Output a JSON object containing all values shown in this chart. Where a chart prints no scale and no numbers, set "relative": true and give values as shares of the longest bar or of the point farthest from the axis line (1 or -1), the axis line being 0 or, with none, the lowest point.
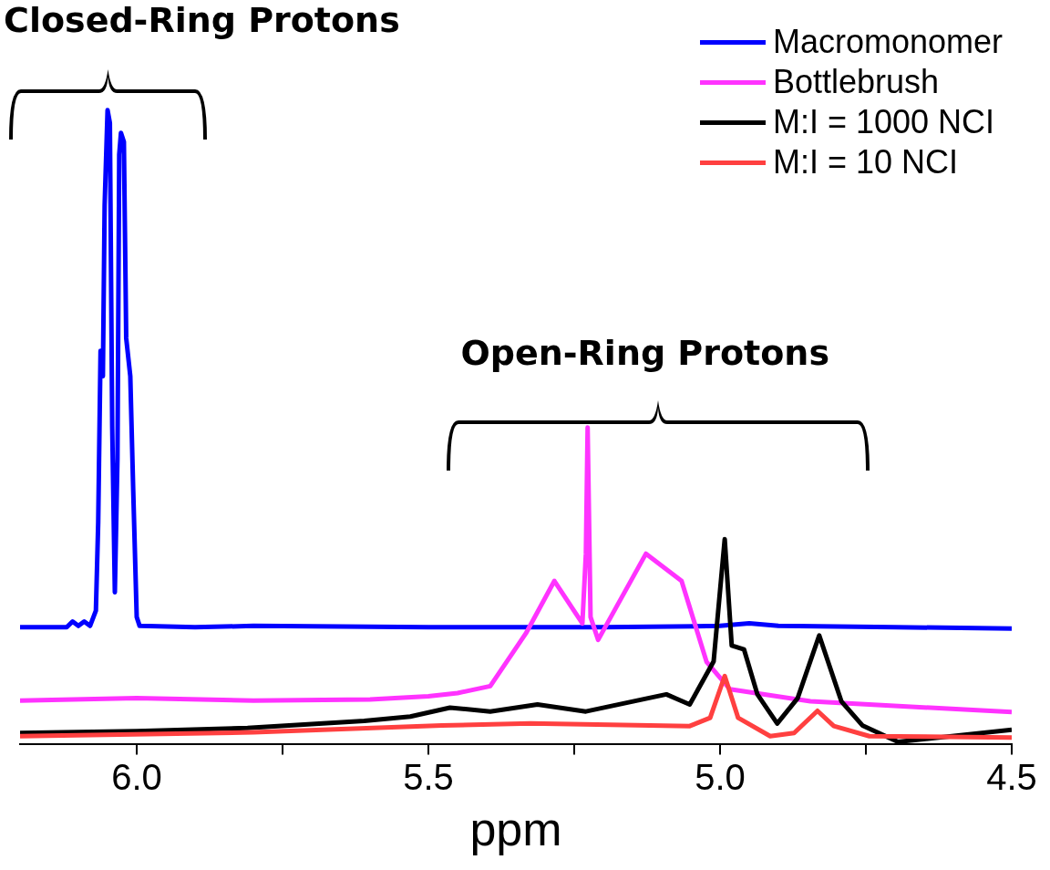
{
  "chart_data": {
    "type": "line",
    "relative": true,
    "xlabel": "ppm",
    "xlim": [
      6.2,
      4.5
    ],
    "xticks": [
      {
        "value": 6.0,
        "label": "6.0"
      },
      {
        "value": 5.75,
        "label": null
      },
      5.5,
      {
        "value": 5.25,
        "label": null
      },
      {
        "value": 5.0,
        "label": "5.0"
      },
      {
        "value": 4.75,
        "label": null
      },
      4.5
    ],
    "legend": "top right",
    "marker": "none",
    "annotations": [
      "Closed-Ring Protons",
      "Open-Ring Protons"
    ],
    "series": [
      {
        "name": "Macromonomer",
        "color": "#0000ff",
        "x": [
          6.2,
          6.12,
          6.11,
          6.1,
          6.09,
          6.08,
          6.07,
          6.066,
          6.062,
          6.058,
          6.055,
          6.05,
          6.046,
          6.042,
          6.0375,
          6.033,
          6.03,
          6.027,
          6.022,
          6.018,
          6.011,
          6.006,
          6.0,
          5.995,
          5.9,
          5.8,
          5.5,
          5.2,
          5.0,
          4.95,
          4.9,
          4.7,
          4.5
        ],
        "values": [
          0.184,
          0.184,
          0.193,
          0.186,
          0.193,
          0.186,
          0.21,
          0.35,
          0.62,
          0.58,
          0.85,
          1.0,
          0.98,
          0.5,
          0.239,
          0.45,
          0.93,
          0.964,
          0.95,
          0.64,
          0.58,
          0.4,
          0.2,
          0.186,
          0.184,
          0.186,
          0.184,
          0.184,
          0.186,
          0.19,
          0.186,
          0.184,
          0.182
        ]
      },
      {
        "name": "Bottlebrush",
        "color": "#ff33ff",
        "x": [
          6.2,
          6.0,
          5.8,
          5.6,
          5.5,
          5.45,
          5.394,
          5.333,
          5.284,
          5.236,
          5.23,
          5.227,
          5.222,
          5.209,
          5.127,
          5.066,
          5.023,
          4.983,
          4.845,
          4.5
        ],
        "values": [
          0.068,
          0.072,
          0.068,
          0.07,
          0.075,
          0.08,
          0.091,
          0.174,
          0.257,
          0.19,
          0.3,
          0.499,
          0.2,
          0.164,
          0.3,
          0.257,
          0.129,
          0.086,
          0.067,
          0.05
        ]
      },
      {
        "name": "M:I = 1000 NCI",
        "color": "#000000",
        "x": [
          6.2,
          6.0,
          5.81,
          5.61,
          5.531,
          5.463,
          5.394,
          5.313,
          5.23,
          5.092,
          5.052,
          5.011,
          4.992,
          4.98,
          4.959,
          4.936,
          4.902,
          4.867,
          4.83,
          4.792,
          4.756,
          4.695,
          4.5
        ],
        "values": [
          0.017,
          0.02,
          0.025,
          0.036,
          0.043,
          0.057,
          0.051,
          0.062,
          0.051,
          0.078,
          0.062,
          0.13,
          0.323,
          0.155,
          0.149,
          0.078,
          0.032,
          0.072,
          0.171,
          0.067,
          0.029,
          0.003,
          0.022
        ]
      },
      {
        "name": "M:I = 10 NCI",
        "color": "#ff4040",
        "x": [
          6.2,
          5.8,
          5.477,
          5.325,
          5.052,
          5.017,
          4.992,
          4.969,
          4.914,
          4.873,
          4.833,
          4.805,
          4.744,
          4.5
        ],
        "values": [
          0.012,
          0.018,
          0.029,
          0.032,
          0.028,
          0.041,
          0.107,
          0.041,
          0.012,
          0.017,
          0.052,
          0.028,
          0.012,
          0.01
        ]
      }
    ]
  }
}
